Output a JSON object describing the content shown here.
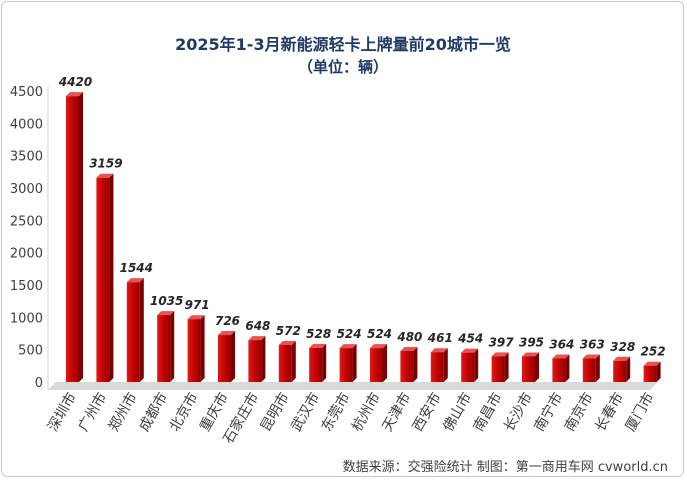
{
  "chart_data": {
    "type": "bar",
    "title": "2025年1-3月新能源轻卡上牌量前20城市一览",
    "subtitle": "（单位：辆）",
    "categories": [
      "深圳市",
      "广州市",
      "郑州市",
      "成都市",
      "北京市",
      "重庆市",
      "石家庄市",
      "昆明市",
      "武汉市",
      "东莞市",
      "杭州市",
      "天津市",
      "西安市",
      "佛山市",
      "南昌市",
      "长沙市",
      "南宁市",
      "南京市",
      "长春市",
      "厦门市"
    ],
    "values": [
      4420,
      3159,
      1544,
      1035,
      971,
      726,
      648,
      572,
      528,
      524,
      524,
      480,
      461,
      454,
      397,
      395,
      364,
      363,
      328,
      252
    ],
    "yticks": [
      0,
      500,
      1000,
      1500,
      2000,
      2500,
      3000,
      3500,
      4000,
      4500
    ],
    "ylim": [
      0,
      4500
    ],
    "xlabel": "",
    "ylabel": "",
    "grid": false,
    "legend": "none",
    "bar_color": "#c00000",
    "source": "数据来源：交强险统计 制图：第一商用车网 cvworld.cn"
  }
}
